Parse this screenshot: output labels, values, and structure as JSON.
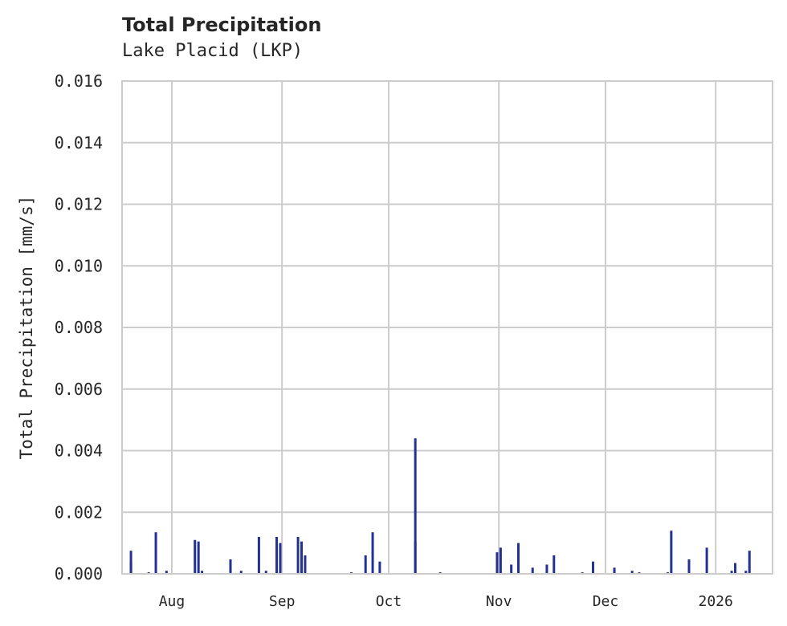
{
  "header": {
    "title": "Total Precipitation",
    "subtitle": "Lake Placid (LKP)"
  },
  "colors": {
    "bar": "#233292",
    "grid": "#cccccc",
    "frame": "#cccccc",
    "text": "#262626",
    "background": "#ffffff"
  },
  "chart_data": {
    "type": "bar",
    "title": "Total Precipitation",
    "subtitle": "Lake Placid (LKP)",
    "xlabel": "",
    "ylabel": "Total Precipitation [mm/s]",
    "ylim": [
      0,
      0.016
    ],
    "yticks": [
      "0.000",
      "0.002",
      "0.004",
      "0.006",
      "0.008",
      "0.010",
      "0.012",
      "0.014",
      "0.016"
    ],
    "xticks": [
      "Aug",
      "Sep",
      "Oct",
      "Nov",
      "Dec",
      "2026"
    ],
    "xrange": [
      "2025-07-18",
      "2026-01-17"
    ],
    "grid": true,
    "legend": null,
    "series": [
      {
        "name": "Total Precipitation",
        "points": [
          {
            "x": "2025-07-20",
            "y": 0.0004
          },
          {
            "x": "2025-07-20",
            "y": 0.00075
          },
          {
            "x": "2025-07-25",
            "y": 5e-05
          },
          {
            "x": "2025-07-27",
            "y": 0.00135
          },
          {
            "x": "2025-07-30",
            "y": 0.0001
          },
          {
            "x": "2025-08-07",
            "y": 0.0011
          },
          {
            "x": "2025-08-08",
            "y": 0.00105
          },
          {
            "x": "2025-08-09",
            "y": 0.0001
          },
          {
            "x": "2025-08-17",
            "y": 0.00047
          },
          {
            "x": "2025-08-20",
            "y": 0.0001
          },
          {
            "x": "2025-08-25",
            "y": 0.0012
          },
          {
            "x": "2025-08-27",
            "y": 0.0001
          },
          {
            "x": "2025-08-30",
            "y": 0.0012
          },
          {
            "x": "2025-08-31",
            "y": 0.001
          },
          {
            "x": "2025-09-05",
            "y": 0.0012
          },
          {
            "x": "2025-09-06",
            "y": 0.00105
          },
          {
            "x": "2025-09-07",
            "y": 0.0006
          },
          {
            "x": "2025-09-20",
            "y": 5e-05
          },
          {
            "x": "2025-09-24",
            "y": 0.0006
          },
          {
            "x": "2025-09-26",
            "y": 0.00135
          },
          {
            "x": "2025-09-28",
            "y": 0.0004
          },
          {
            "x": "2025-10-08",
            "y": 0.00105
          },
          {
            "x": "2025-10-08",
            "y": 0.0044
          },
          {
            "x": "2025-10-15",
            "y": 5e-05
          },
          {
            "x": "2025-10-31",
            "y": 0.0007
          },
          {
            "x": "2025-11-01",
            "y": 0.00085
          },
          {
            "x": "2025-11-04",
            "y": 0.0003
          },
          {
            "x": "2025-11-06",
            "y": 0.001
          },
          {
            "x": "2025-11-10",
            "y": 0.0002
          },
          {
            "x": "2025-11-14",
            "y": 0.0003
          },
          {
            "x": "2025-11-16",
            "y": 0.0006
          },
          {
            "x": "2025-11-24",
            "y": 5e-05
          },
          {
            "x": "2025-11-27",
            "y": 0.0004
          },
          {
            "x": "2025-12-03",
            "y": 0.0002
          },
          {
            "x": "2025-12-08",
            "y": 0.0001
          },
          {
            "x": "2025-12-10",
            "y": 5e-05
          },
          {
            "x": "2025-12-18",
            "y": 5e-05
          },
          {
            "x": "2025-12-19",
            "y": 0.0014
          },
          {
            "x": "2025-12-24",
            "y": 0.00047
          },
          {
            "x": "2025-12-29",
            "y": 0.00085
          },
          {
            "x": "2026-01-05",
            "y": 0.0001
          },
          {
            "x": "2026-01-06",
            "y": 0.00035
          },
          {
            "x": "2026-01-09",
            "y": 0.0001
          },
          {
            "x": "2026-01-10",
            "y": 0.00075
          }
        ]
      }
    ]
  }
}
